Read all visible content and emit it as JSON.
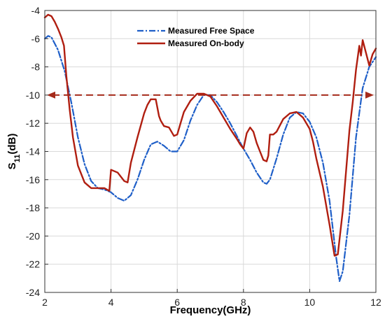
{
  "chart_data": {
    "type": "line",
    "xlabel": "Frequency(GHz)",
    "ylabel": {
      "main": "S",
      "sub": "11",
      "unit": "(dB)"
    },
    "xlim": [
      2,
      12
    ],
    "ylim": [
      -24,
      -4
    ],
    "xticks": [
      2,
      4,
      6,
      8,
      10,
      12
    ],
    "yticks": [
      -4,
      -6,
      -8,
      -10,
      -12,
      -14,
      -16,
      -18,
      -20,
      -22,
      -24
    ],
    "grid": true,
    "legend_position": "top-center",
    "reference_line": {
      "y": -10,
      "style": "dashed",
      "arrows": "both",
      "color": "#a52a1a"
    },
    "series": [
      {
        "name": "Measured Free Space",
        "color": "#1f5fc8",
        "style": "dash-dot",
        "x": [
          2.0,
          2.1,
          2.2,
          2.4,
          2.6,
          2.8,
          3.0,
          3.2,
          3.4,
          3.6,
          3.8,
          4.0,
          4.2,
          4.4,
          4.6,
          4.8,
          5.0,
          5.2,
          5.4,
          5.6,
          5.8,
          6.0,
          6.2,
          6.4,
          6.6,
          6.8,
          7.0,
          7.2,
          7.4,
          7.6,
          7.8,
          8.0,
          8.2,
          8.4,
          8.6,
          8.7,
          8.8,
          9.0,
          9.2,
          9.4,
          9.6,
          9.8,
          10.0,
          10.2,
          10.4,
          10.6,
          10.8,
          10.9,
          11.0,
          11.2,
          11.4,
          11.6,
          11.8,
          12.0
        ],
        "y": [
          -6.0,
          -5.8,
          -5.9,
          -6.8,
          -8.3,
          -10.5,
          -13.0,
          -14.9,
          -16.1,
          -16.6,
          -16.7,
          -16.9,
          -17.3,
          -17.5,
          -17.1,
          -16.0,
          -14.6,
          -13.5,
          -13.3,
          -13.6,
          -14.0,
          -14.0,
          -13.2,
          -11.8,
          -10.7,
          -10.0,
          -10.0,
          -10.5,
          -11.2,
          -12.0,
          -12.9,
          -13.8,
          -14.6,
          -15.5,
          -16.2,
          -16.3,
          -16.0,
          -14.5,
          -12.8,
          -11.6,
          -11.2,
          -11.3,
          -11.9,
          -13.0,
          -14.8,
          -17.5,
          -21.5,
          -23.2,
          -22.5,
          -18.5,
          -13.0,
          -9.5,
          -8.0,
          -7.3
        ]
      },
      {
        "name": "Measured On-body",
        "color": "#b01e10",
        "style": "solid",
        "x": [
          2.0,
          2.1,
          2.2,
          2.3,
          2.4,
          2.5,
          2.58,
          2.65,
          2.75,
          2.85,
          3.0,
          3.2,
          3.4,
          3.6,
          3.8,
          3.95,
          4.0,
          4.2,
          4.4,
          4.5,
          4.6,
          4.8,
          5.0,
          5.1,
          5.2,
          5.35,
          5.45,
          5.5,
          5.6,
          5.75,
          5.9,
          6.0,
          6.1,
          6.2,
          6.4,
          6.6,
          6.8,
          7.0,
          7.2,
          7.4,
          7.6,
          7.8,
          7.9,
          8.0,
          8.1,
          8.2,
          8.3,
          8.4,
          8.5,
          8.6,
          8.7,
          8.75,
          8.8,
          8.9,
          9.0,
          9.2,
          9.4,
          9.6,
          9.8,
          10.0,
          10.1,
          10.2,
          10.4,
          10.6,
          10.75,
          10.85,
          11.0,
          11.2,
          11.3,
          11.4,
          11.5,
          11.55,
          11.6,
          11.7,
          11.8,
          11.9,
          12.0
        ],
        "y": [
          -4.5,
          -4.3,
          -4.4,
          -4.8,
          -5.3,
          -5.9,
          -6.5,
          -8.6,
          -11.0,
          -13.0,
          -15.0,
          -16.2,
          -16.6,
          -16.6,
          -16.6,
          -16.8,
          -15.3,
          -15.5,
          -16.1,
          -16.2,
          -14.8,
          -13.0,
          -11.3,
          -10.7,
          -10.3,
          -10.3,
          -11.5,
          -11.8,
          -12.2,
          -12.3,
          -12.9,
          -12.8,
          -12.0,
          -11.2,
          -10.4,
          -9.9,
          -9.9,
          -10.1,
          -10.8,
          -11.6,
          -12.4,
          -13.1,
          -13.5,
          -13.8,
          -12.7,
          -12.3,
          -12.6,
          -13.4,
          -14.0,
          -14.6,
          -14.7,
          -14.3,
          -12.8,
          -12.8,
          -12.6,
          -11.7,
          -11.3,
          -11.2,
          -11.6,
          -12.4,
          -13.3,
          -14.5,
          -16.5,
          -19.2,
          -21.4,
          -21.3,
          -18.2,
          -12.5,
          -10.5,
          -8.2,
          -6.5,
          -7.2,
          -6.1,
          -7.0,
          -7.9,
          -7.1,
          -6.7
        ]
      }
    ]
  }
}
